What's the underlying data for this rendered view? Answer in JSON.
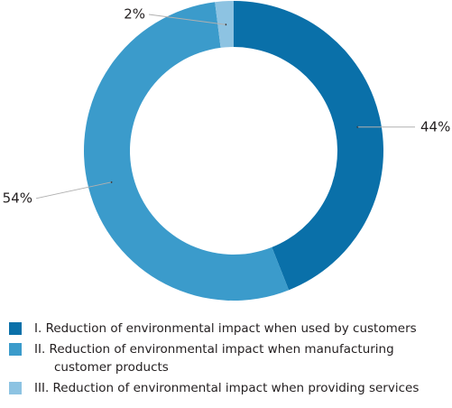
{
  "chart_data": {
    "type": "donut",
    "categories": [
      "I. Reduction of environmental impact when used by customers",
      "II. Reduction of environmental impact when manufacturing customer products",
      "III. Reduction of environmental impact when providing services"
    ],
    "values": [
      44,
      54,
      2
    ],
    "value_labels": [
      "44%",
      "54%",
      "2%"
    ],
    "colors": [
      "#0a70a9",
      "#3b9bcb",
      "#8dc3e2"
    ]
  }
}
